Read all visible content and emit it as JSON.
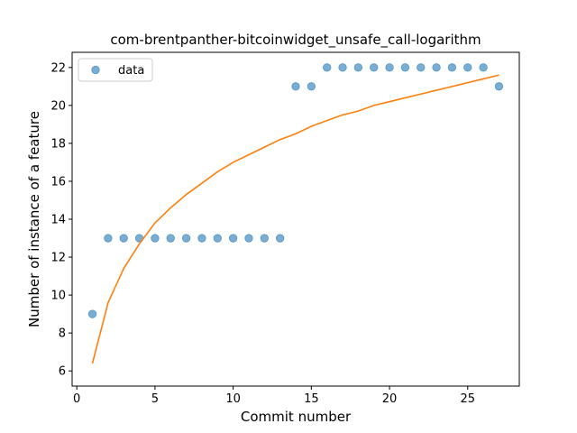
{
  "chart_data": {
    "type": "scatter",
    "title": "com-brentpanther-bitcoinwidget_unsafe_call-logarithm",
    "xlabel": "Commit number",
    "ylabel": "Number of instance of a feature",
    "xlim": [
      -0.3,
      28.3
    ],
    "ylim": [
      5.2,
      22.8
    ],
    "xticks": [
      0,
      5,
      10,
      15,
      20,
      25
    ],
    "yticks": [
      6,
      8,
      10,
      12,
      14,
      16,
      18,
      20,
      22
    ],
    "grid": false,
    "legend": {
      "placement": "top-left",
      "entries": [
        "data"
      ]
    },
    "series": [
      {
        "name": "data",
        "kind": "scatter",
        "color": "#1f77b4",
        "x": [
          1,
          2,
          3,
          4,
          5,
          6,
          7,
          8,
          9,
          10,
          11,
          12,
          13,
          14,
          15,
          16,
          17,
          18,
          19,
          20,
          21,
          22,
          23,
          24,
          25,
          26,
          27
        ],
        "y": [
          9,
          13,
          13,
          13,
          13,
          13,
          13,
          13,
          13,
          13,
          13,
          13,
          13,
          21,
          21,
          22,
          22,
          22,
          22,
          22,
          22,
          22,
          22,
          22,
          22,
          22,
          21
        ]
      },
      {
        "kind": "line",
        "color": "#ff7f0e",
        "x": [
          1,
          2,
          3,
          4,
          5,
          6,
          7,
          8,
          9,
          10,
          11,
          12,
          13,
          14,
          15,
          16,
          17,
          18,
          19,
          20,
          21,
          22,
          23,
          24,
          25,
          26,
          27
        ],
        "y": [
          6.4,
          9.6,
          11.4,
          12.7,
          13.8,
          14.6,
          15.3,
          15.9,
          16.5,
          17.0,
          17.4,
          17.8,
          18.2,
          18.5,
          18.9,
          19.2,
          19.5,
          19.7,
          20.0,
          20.2,
          20.4,
          20.6,
          20.8,
          21.0,
          21.2,
          21.4,
          21.6
        ]
      }
    ]
  }
}
